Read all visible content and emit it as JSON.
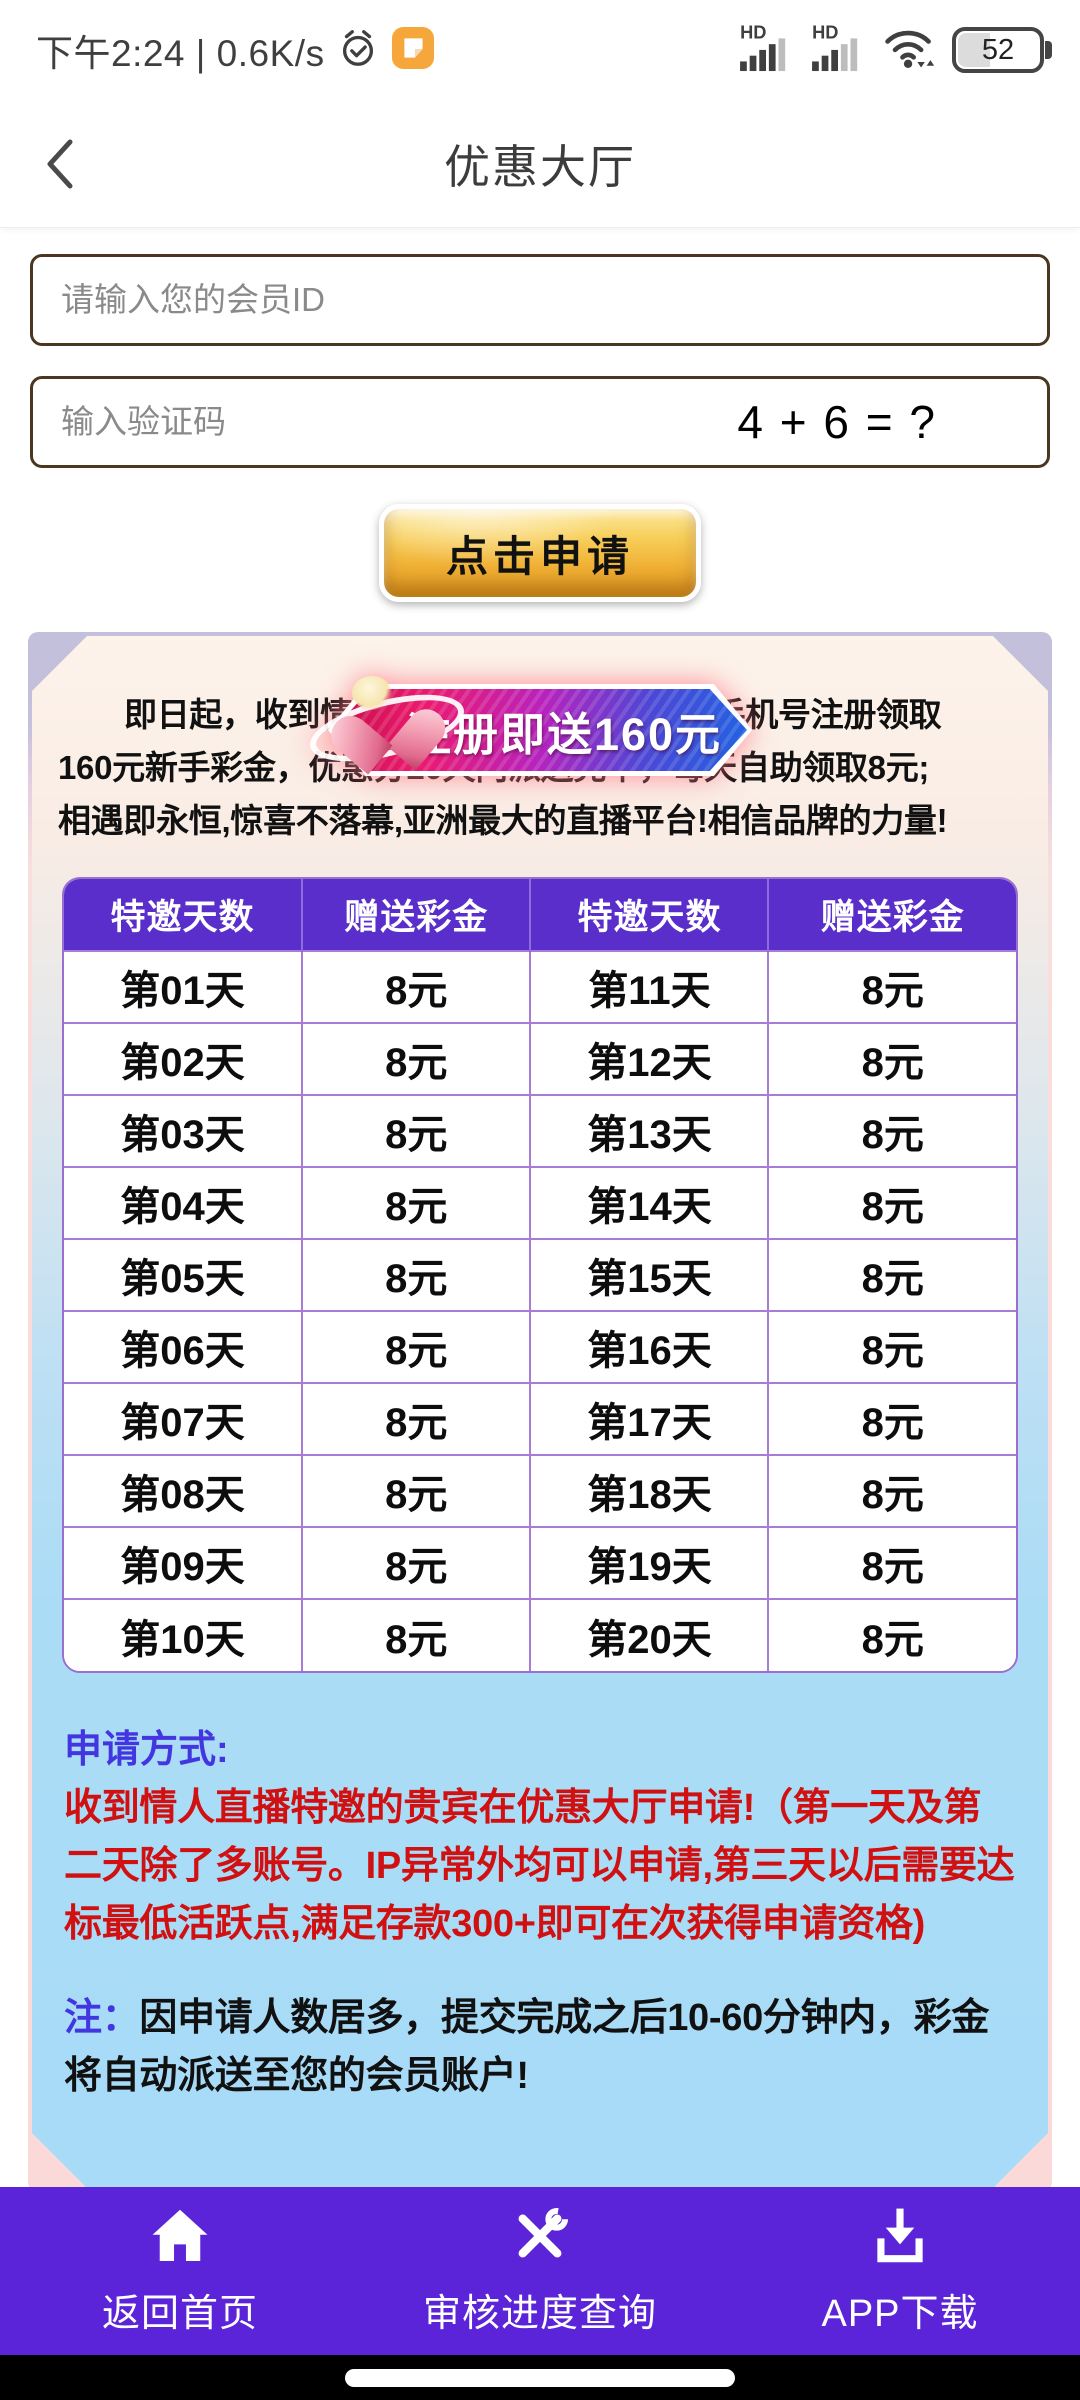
{
  "status_bar": {
    "time_text": "下午2:24 | 0.6K/s",
    "hd_label": "HD",
    "battery_level": "52",
    "icons": [
      "alarm-clock-icon",
      "message-note-icon",
      "signal-icon",
      "signal-icon",
      "wifi-icon",
      "battery-icon"
    ]
  },
  "header": {
    "title": "优惠大厅",
    "back_icon": "chevron-left-icon"
  },
  "form": {
    "member_id_placeholder": "请输入您的会员ID",
    "captcha_placeholder": "输入验证码",
    "captcha_question": "4 + 6 = ?",
    "apply_button_label": "点击申请"
  },
  "promo": {
    "banner_text": "注册即送160元",
    "intro_lines": [
      "即日起，收到情人直播特邀的贵宾，可凭手机号注册领取",
      "160元新手彩金，优惠分20天内派送完毕，每天自助领取8元;",
      "相遇即永恒,惊喜不落幕,亚洲最大的直播平台!相信品牌的力量!"
    ],
    "table": {
      "headers": [
        "特邀天数",
        "赠送彩金",
        "特邀天数",
        "赠送彩金"
      ],
      "rows": [
        [
          "第01天",
          "8元",
          "第11天",
          "8元"
        ],
        [
          "第02天",
          "8元",
          "第12天",
          "8元"
        ],
        [
          "第03天",
          "8元",
          "第13天",
          "8元"
        ],
        [
          "第04天",
          "8元",
          "第14天",
          "8元"
        ],
        [
          "第05天",
          "8元",
          "第15天",
          "8元"
        ],
        [
          "第06天",
          "8元",
          "第16天",
          "8元"
        ],
        [
          "第07天",
          "8元",
          "第17天",
          "8元"
        ],
        [
          "第08天",
          "8元",
          "第18天",
          "8元"
        ],
        [
          "第09天",
          "8元",
          "第19天",
          "8元"
        ],
        [
          "第10天",
          "8元",
          "第20天",
          "8元"
        ]
      ]
    },
    "apply_method_label": "申请方式:",
    "apply_method_text": "收到情人直播特邀的贵宾在优惠大厅申请!（第一天及第二天除了多账号。IP异常外均可以申请,第三天以后需要达标最低活跃点,满足存款300+即可在次获得申请资格)",
    "note_label": "注：",
    "note_text": "因申请人数居多，提交完成之后10-60分钟内，彩金将自动派送至您的会员账户!"
  },
  "bottom_nav": {
    "items": [
      {
        "icon": "home-icon",
        "label": "返回首页"
      },
      {
        "icon": "tools-icon",
        "label": "审核进度查询"
      },
      {
        "icon": "download-icon",
        "label": "APP下载"
      }
    ]
  },
  "colors": {
    "nav_purple": "#5b24d8",
    "table_header_purple": "#5a2ecb",
    "table_border_purple": "#a77bd8",
    "accent_blue": "#4336e0",
    "accent_red": "#d11111",
    "gold_button": "#efae33",
    "input_border_brown": "#4b371f",
    "panel_cream": "#fdf3ea",
    "panel_blue": "#a8dbf7",
    "card_pink": "#fcdbda",
    "card_lavender": "#c3c0dc"
  }
}
